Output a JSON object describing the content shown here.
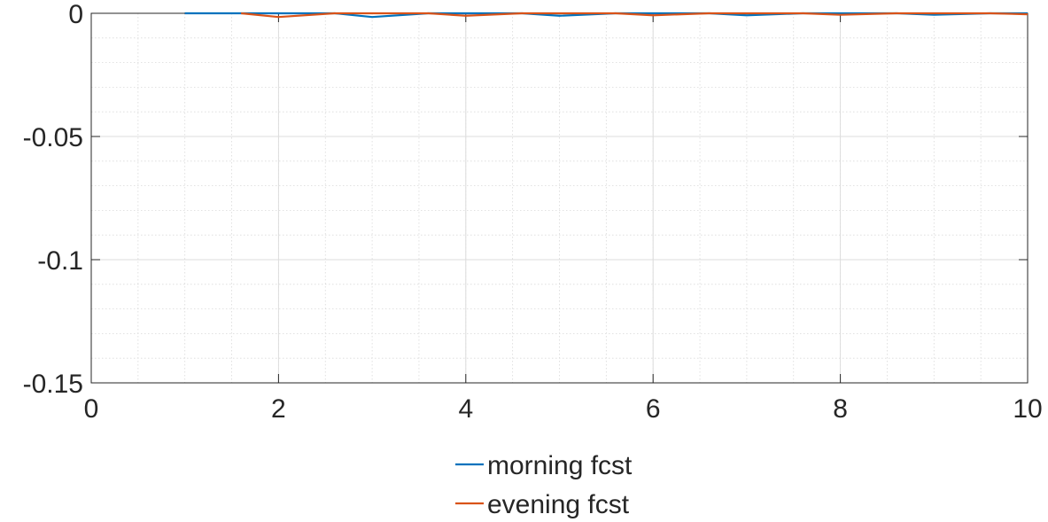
{
  "chart_data": {
    "type": "line",
    "title": "",
    "xlabel": "",
    "ylabel": "",
    "xlim": [
      0,
      10
    ],
    "ylim": [
      -0.15,
      0
    ],
    "xticks": [
      0,
      2,
      4,
      6,
      8,
      10
    ],
    "xtick_labels": [
      "0",
      "2",
      "4",
      "6",
      "8",
      "10"
    ],
    "yticks": [
      -0.15,
      -0.1,
      -0.05,
      0
    ],
    "ytick_labels": [
      "-0.15",
      "-0.1",
      "-0.05",
      "0"
    ],
    "grid": true,
    "minor_grid": true,
    "legend_position": "bottom-center",
    "series": [
      {
        "name": "morning fcst",
        "color": "#0072BD",
        "x": [
          1,
          1.6,
          2,
          2.6,
          3,
          3.6,
          4,
          4.6,
          5,
          5.6,
          6,
          6.6,
          7,
          7.6,
          8,
          8.6,
          9,
          9.6,
          10
        ],
        "y": [
          0,
          0,
          0,
          0,
          -0.0015,
          0,
          0,
          0,
          -0.001,
          0,
          0,
          0,
          -0.0008,
          0,
          0,
          0,
          -0.0006,
          0,
          0
        ]
      },
      {
        "name": "evening fcst",
        "color": "#D95319",
        "x": [
          1.6,
          2,
          2.6,
          3,
          3.6,
          4,
          4.6,
          5,
          5.6,
          6,
          6.6,
          7,
          7.6,
          8,
          8.6,
          9,
          9.6,
          10
        ],
        "y": [
          0,
          -0.0015,
          0,
          0,
          0,
          -0.001,
          0,
          0,
          0,
          -0.0008,
          0,
          0,
          0,
          -0.0006,
          0,
          0,
          0,
          -0.0004
        ]
      }
    ],
    "reference_line": {
      "y": 0,
      "x_range": [
        1,
        10
      ],
      "style": "dashed",
      "color": "#000000"
    }
  }
}
